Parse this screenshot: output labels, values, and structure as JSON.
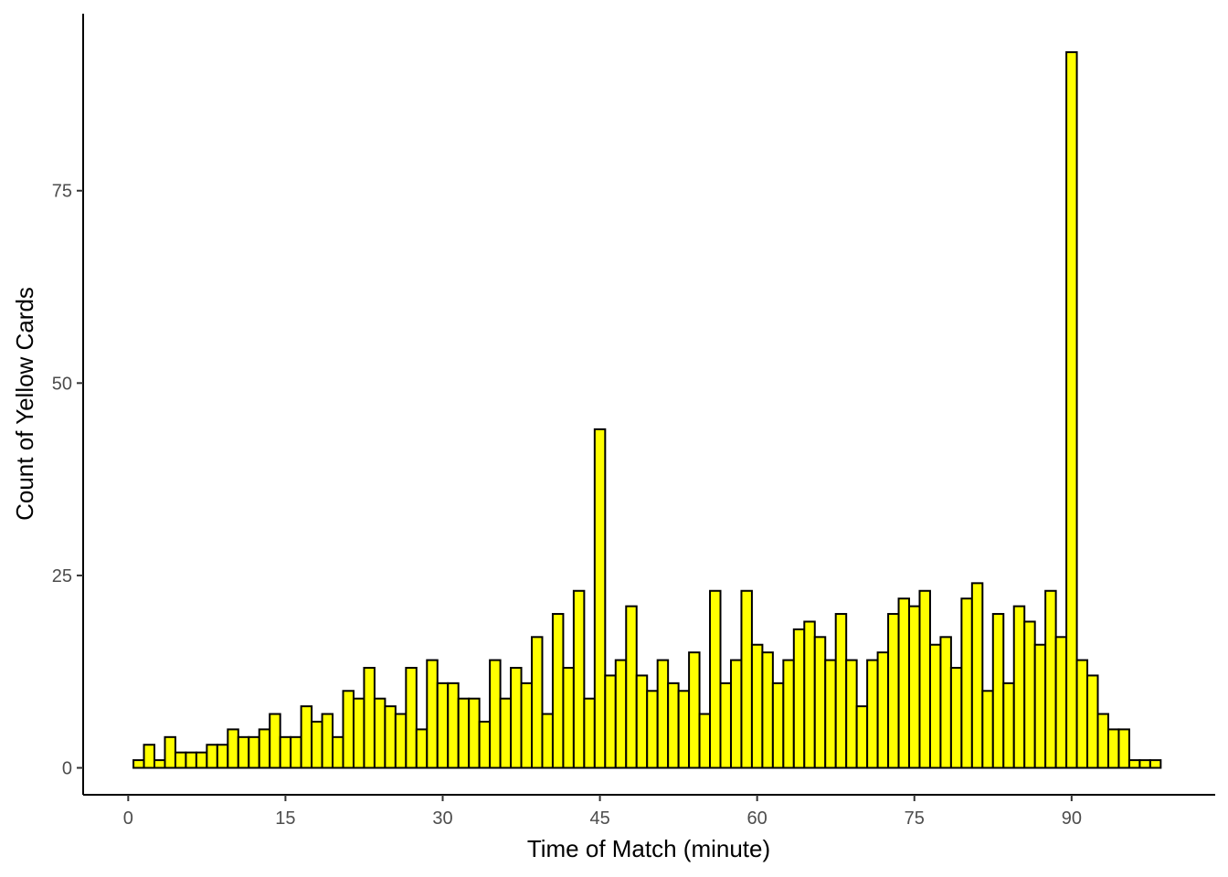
{
  "chart_data": {
    "type": "bar",
    "title": "",
    "xlabel": "Time of Match (minute)",
    "ylabel": "Count of Yellow Cards",
    "xlim": [
      -4.3,
      103.7
    ],
    "ylim": [
      -3.5,
      98
    ],
    "x_ticks": [
      0,
      15,
      30,
      45,
      60,
      75,
      90
    ],
    "y_ticks": [
      0,
      25,
      50,
      75
    ],
    "x_tick_labels": [
      "0",
      "15",
      "30",
      "45",
      "60",
      "75",
      "90"
    ],
    "y_tick_labels": [
      "0",
      "25",
      "50",
      "75"
    ],
    "grid": false,
    "legend": "none",
    "bar_fill": "#ffff00",
    "bar_outline": "#000000",
    "x": [
      1,
      2,
      3,
      4,
      5,
      6,
      7,
      8,
      9,
      10,
      11,
      12,
      13,
      14,
      15,
      16,
      17,
      18,
      19,
      20,
      21,
      22,
      23,
      24,
      25,
      26,
      27,
      28,
      29,
      30,
      31,
      32,
      33,
      34,
      35,
      36,
      37,
      38,
      39,
      40,
      41,
      42,
      43,
      44,
      45,
      46,
      47,
      48,
      49,
      50,
      51,
      52,
      53,
      54,
      55,
      56,
      57,
      58,
      59,
      60,
      61,
      62,
      63,
      64,
      65,
      66,
      67,
      68,
      69,
      70,
      71,
      72,
      73,
      74,
      75,
      76,
      77,
      78,
      79,
      80,
      81,
      82,
      83,
      84,
      85,
      86,
      87,
      88,
      89,
      90,
      91,
      92,
      93,
      94,
      95,
      96,
      97,
      98
    ],
    "values": [
      1,
      3,
      1,
      4,
      2,
      2,
      2,
      3,
      3,
      5,
      4,
      4,
      5,
      7,
      4,
      4,
      8,
      6,
      7,
      4,
      10,
      9,
      13,
      9,
      8,
      7,
      13,
      5,
      14,
      11,
      11,
      9,
      9,
      6,
      14,
      9,
      13,
      11,
      17,
      7,
      20,
      13,
      23,
      9,
      44,
      12,
      14,
      21,
      12,
      10,
      14,
      11,
      10,
      15,
      7,
      23,
      11,
      14,
      23,
      16,
      15,
      11,
      14,
      18,
      19,
      17,
      14,
      20,
      14,
      8,
      14,
      15,
      20,
      22,
      21,
      23,
      16,
      17,
      13,
      22,
      24,
      10,
      20,
      11,
      21,
      19,
      16,
      23,
      17,
      93,
      14,
      12,
      7,
      5,
      5,
      1,
      1,
      1
    ]
  }
}
